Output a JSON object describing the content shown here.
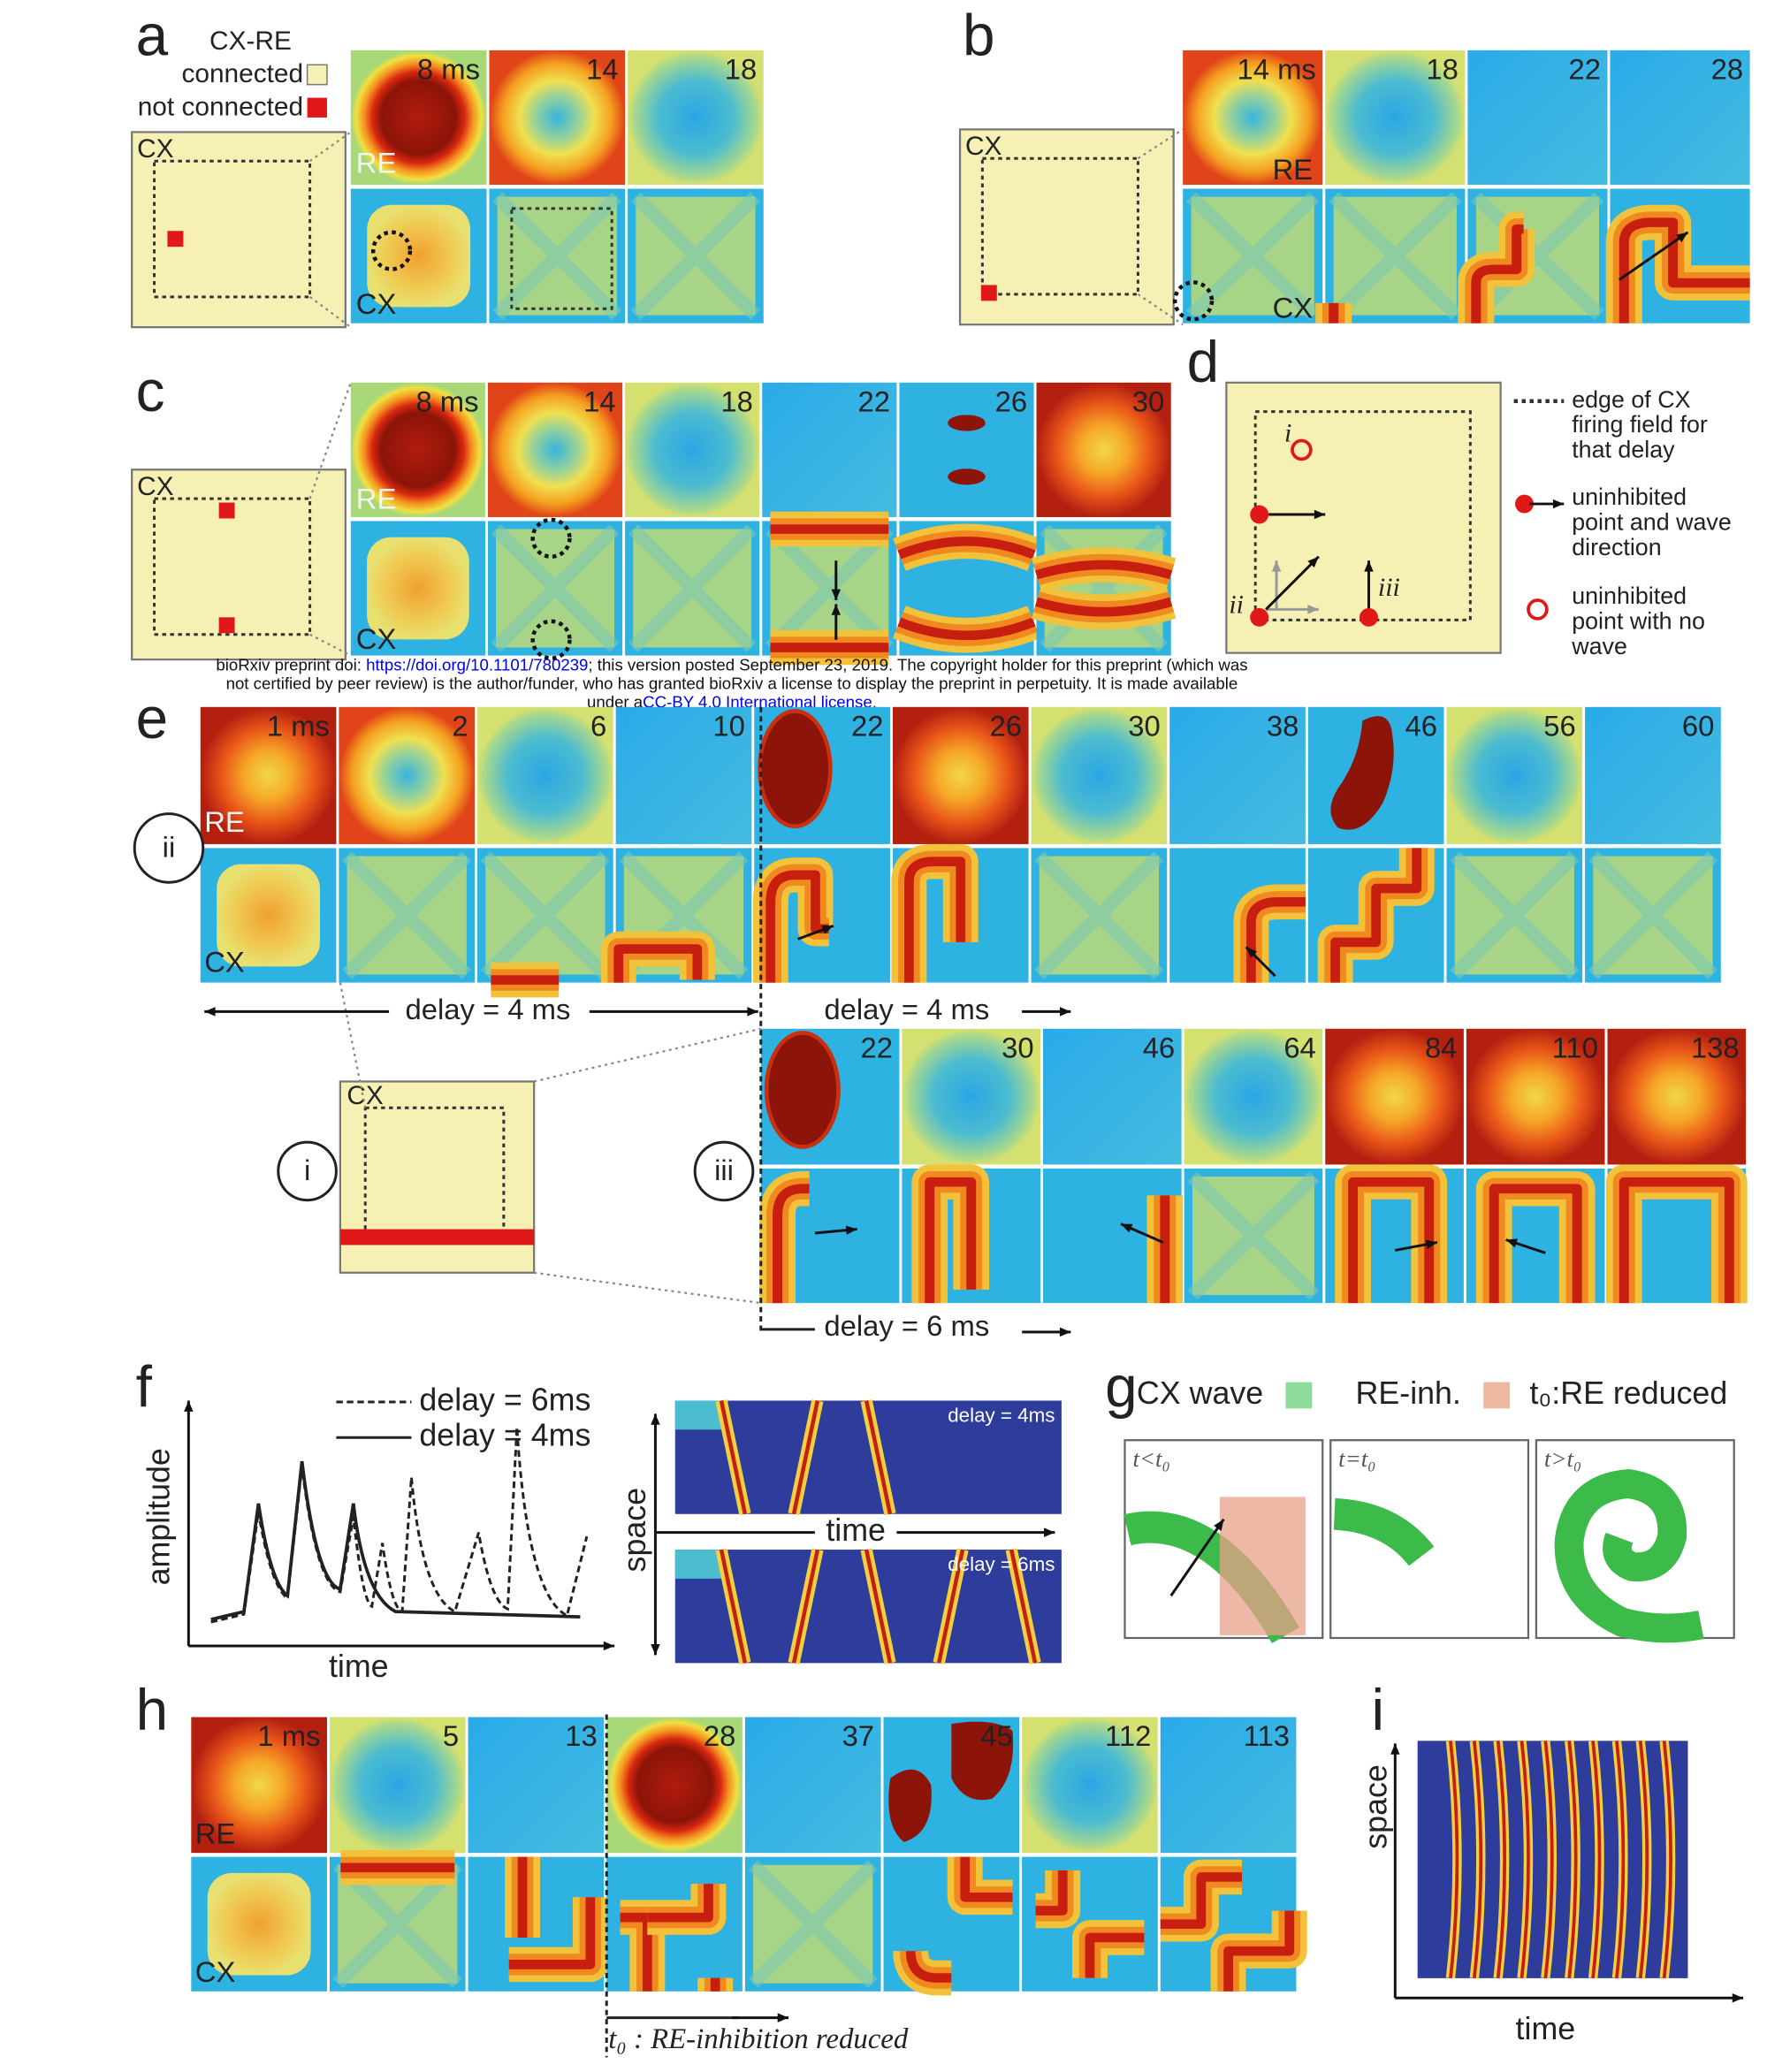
{
  "panel_a": {
    "letter": "a",
    "legend_title": "CX-RE",
    "legend_connected": "connected",
    "legend_not_connected": "not connected",
    "schematic_label": "CX",
    "row_labels": [
      "RE",
      "CX"
    ],
    "times": [
      "8 ms",
      "14",
      "18"
    ]
  },
  "panel_b": {
    "letter": "b",
    "schematic_label": "CX",
    "row_labels": [
      "RE",
      "CX"
    ],
    "times": [
      "14 ms",
      "18",
      "22",
      "28"
    ]
  },
  "panel_c": {
    "letter": "c",
    "schematic_label": "CX",
    "row_labels": [
      "RE",
      "CX"
    ],
    "times": [
      "8 ms",
      "14",
      "18",
      "22",
      "26",
      "30"
    ]
  },
  "panel_d": {
    "letter": "d",
    "legend": [
      [
        "edge of CX",
        "firing field for",
        "that delay"
      ],
      [
        "uninhibited",
        "point and wave",
        "direction"
      ],
      [
        "uninhibited",
        "point with no",
        "wave"
      ]
    ],
    "points": [
      "i",
      "ii",
      "iii"
    ]
  },
  "preprint_notice": {
    "line1_before": "bioRxiv preprint doi: ",
    "doi": "https://doi.org/10.1101/780239",
    "line1_after": "; this version posted September 23, 2019. The copyright holder for this preprint (which was",
    "line2": "not certified by peer review) is the author/funder, who has granted bioRxiv a license to display the preprint in perpetuity. It is made available",
    "line3_before": "under a",
    "license": "CC-BY 4.0 International license",
    "line3_after": "."
  },
  "panel_e": {
    "letter": "e",
    "row_labels": [
      "RE",
      "CX"
    ],
    "markers": [
      "ii",
      "i",
      "iii"
    ],
    "schematic_label": "CX",
    "top_times": [
      "1 ms",
      "2",
      "6",
      "10",
      "22",
      "26",
      "30",
      "38",
      "46",
      "56",
      "60"
    ],
    "bottom_times": [
      "22",
      "30",
      "46",
      "64",
      "84",
      "110",
      "138"
    ],
    "delays": [
      "delay = 4 ms",
      "delay = 4 ms",
      "delay = 6 ms"
    ]
  },
  "panel_f": {
    "letter": "f",
    "legend": [
      "delay = 6ms",
      "delay = 4ms"
    ],
    "y_label": "amplitude",
    "x_label": "time",
    "raster_x_label": "time",
    "raster_y_label": "space",
    "raster_labels": [
      "delay = 4ms",
      "delay = 6ms"
    ]
  },
  "panel_g": {
    "letter": "g",
    "legend": [
      "CX wave",
      "RE-inh.",
      "t₀:RE reduced"
    ],
    "boxes": [
      "t<t₀",
      "t=t₀",
      "t>t₀"
    ]
  },
  "panel_h": {
    "letter": "h",
    "row_labels": [
      "RE",
      "CX"
    ],
    "times": [
      "1 ms",
      "5",
      "13",
      "28",
      "37",
      "45",
      "112",
      "113"
    ],
    "annotation": "t₀ : RE-inhibition reduced"
  },
  "panel_i": {
    "letter": "i",
    "y_label": "space",
    "x_label": "time"
  }
}
